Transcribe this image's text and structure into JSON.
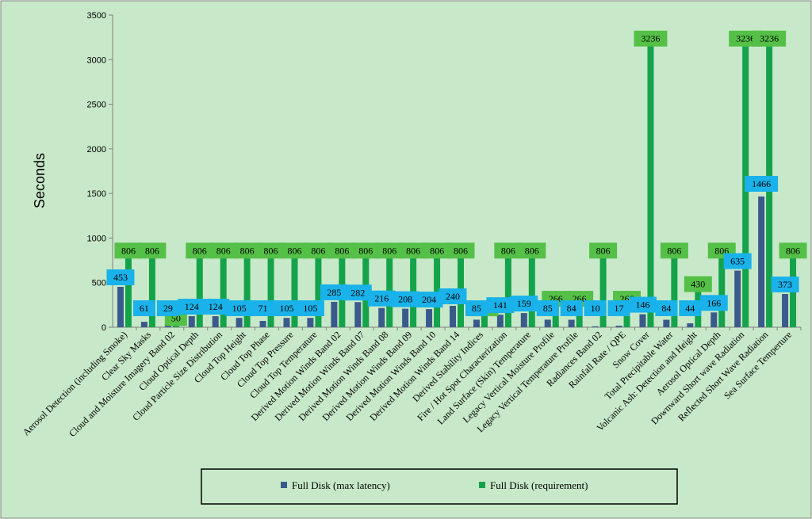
{
  "chart_data": {
    "type": "bar",
    "title": "",
    "xlabel": "",
    "ylabel": "Seconds",
    "ylim": [
      0,
      3500
    ],
    "yticks": [
      0,
      500,
      1000,
      1500,
      2000,
      2500,
      3000,
      3500
    ],
    "grid": false,
    "legend_position": "bottom-center",
    "categories": [
      "Aerosol Detection (including Smoke)",
      "Clear Sky Masks",
      "Cloud and Moisture Imagery Band 02",
      "Cloud Optical Depth",
      "Cloud Particle Size Distribution",
      "Cloud Top Height",
      "Cloud Top Phase",
      "Cloud Top Pressure",
      "Cloud Top Temperature",
      "Derived Motion Winds Band 02",
      "Derived Motion Winds Band 07",
      "Derived Motion Winds Band 08",
      "Derived Motion Winds Band 09",
      "Derived Motion Winds Band 10",
      "Derived Motion Winds Band 14",
      "Derived Stability Indices",
      "Fire / Hot Spot Characterization",
      "Land Surface (Skin) Temperature",
      "Legacy Vertical Moisture Profile",
      "Legacy Vertical Temperature Profile",
      "Radiances Band 02",
      "Rainfall Rate / QPE",
      "Snow Cover",
      "Total Precipitable Water",
      "Volcanic Ash: Detection and Height",
      "Aerosol Optical Depth",
      "Downward Short wave Radiation",
      "Reflected Short Wave Radiation",
      "Sea Surface Temperture"
    ],
    "series": [
      {
        "name": "Full Disk (max latency)",
        "color": "#3b5a8c",
        "label_color": "#19b2ea",
        "values": [
          453,
          61,
          29,
          124,
          124,
          105,
          71,
          105,
          105,
          285,
          282,
          216,
          208,
          204,
          240,
          85,
          141,
          159,
          85,
          84,
          10,
          17,
          146,
          84,
          44,
          166,
          635,
          1466,
          373
        ]
      },
      {
        "name": "Full Disk (requirement)",
        "color": "#14a34a",
        "label_color": "#54c047",
        "values": [
          806,
          806,
          50,
          806,
          806,
          806,
          806,
          806,
          806,
          806,
          806,
          806,
          806,
          806,
          806,
          159,
          806,
          806,
          266,
          266,
          806,
          266,
          3236,
          806,
          430,
          806,
          3236,
          3236,
          806
        ]
      }
    ]
  },
  "colors": {
    "plot_background": "#c8e9c9",
    "frame": "#7f7f7f"
  }
}
